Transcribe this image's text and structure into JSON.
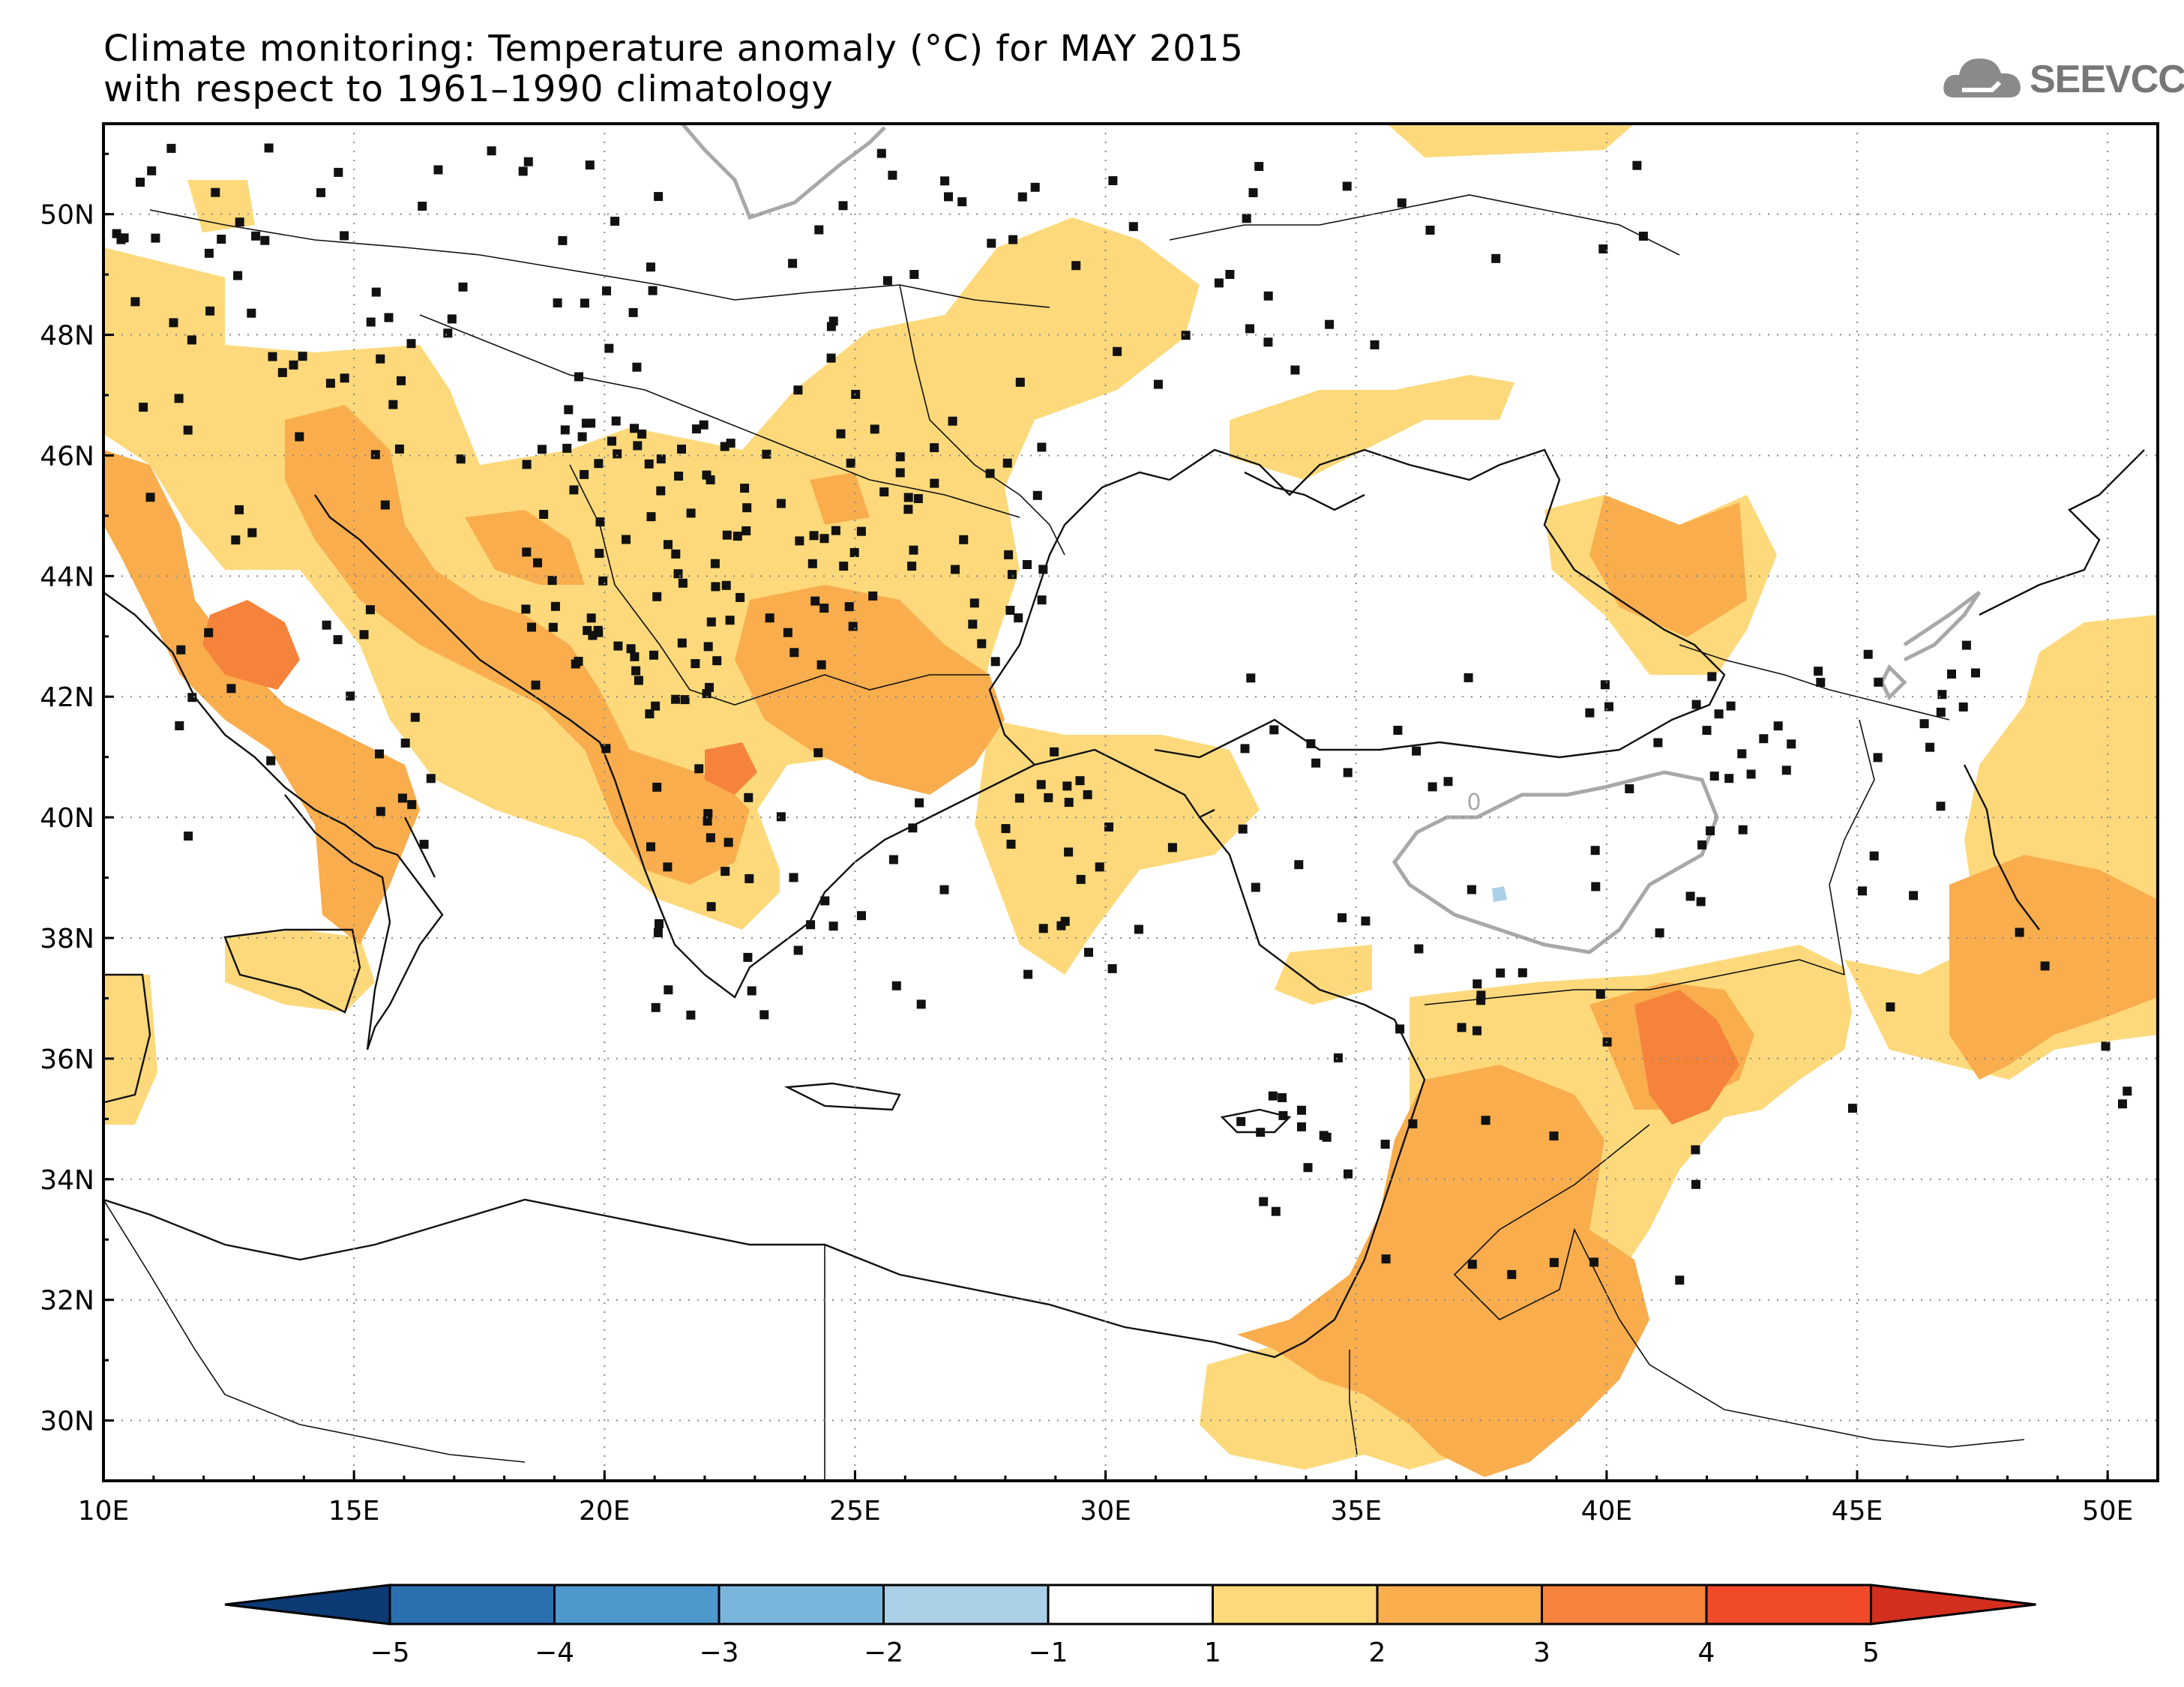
{
  "title_line1": "Climate monitoring: Temperature anomaly (°C) for MAY 2015",
  "title_line2": "with respect to 1961–1990 climatology",
  "logo_text": "SEEVCCC",
  "logo_icon": "cloud-icon",
  "map": {
    "lon_range": [
      10,
      51
    ],
    "lat_range": [
      29,
      51.5
    ],
    "lon_ticks": [
      "10E",
      "15E",
      "20E",
      "25E",
      "30E",
      "35E",
      "40E",
      "45E",
      "50E"
    ],
    "lat_ticks": [
      "30N",
      "32N",
      "34N",
      "36N",
      "38N",
      "40N",
      "42N",
      "44N",
      "46N",
      "48N",
      "50N"
    ],
    "contour_label": "0"
  },
  "colorbar": {
    "labels": [
      "−5",
      "−4",
      "−3",
      "−2",
      "−1",
      "1",
      "2",
      "3",
      "4",
      "5"
    ],
    "colors": [
      "#0c3a74",
      "#2a6fae",
      "#4d98cc",
      "#7ab6dc",
      "#a9d0e6",
      "#ffffff",
      "#fdd97b",
      "#f9ad4d",
      "#f5833b",
      "#f04a2a",
      "#d32f1e"
    ]
  },
  "colors": {
    "anom_1_2": "#fdd97b",
    "anom_2_3": "#f9ad4d",
    "anom_3_4": "#f5833b",
    "anom_neg": "#a9d0e6",
    "contour_zero": "#a8a8a8"
  }
}
